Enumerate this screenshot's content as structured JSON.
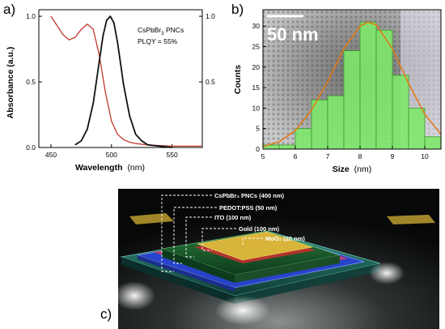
{
  "figure": {
    "panel_labels": [
      "a)",
      "b)",
      "c)"
    ]
  },
  "panel_a": {
    "ylabel_left": "Absorbance (a.u.)",
    "xlabel_bold": "Wavelength",
    "xlabel_unit": "(nm)",
    "legend_line1": "CsPbBr",
    "legend_line1_sub": "3",
    "legend_line1_tail": " PNCs",
    "legend_line2": "PLQY = 55%",
    "x_ticks": [
      "450",
      "500",
      "550"
    ],
    "y_ticks_left": [
      "0.0",
      "0.5",
      "1.0"
    ],
    "y_ticks_right": [
      "0.5",
      "1.0"
    ]
  },
  "panel_b": {
    "scalebar_label": "50 nm",
    "ylabel": "Counts",
    "xlabel_bold": "Size",
    "xlabel_unit": "(nm)",
    "x_ticks": [
      "5",
      "6",
      "7",
      "8",
      "9",
      "10"
    ],
    "y_ticks": [
      "0",
      "5",
      "10",
      "15",
      "20",
      "25",
      "30"
    ]
  },
  "panel_c": {
    "labels": {
      "pnc": "CsPbBr₃ PNCs (400 nm)",
      "pedot": "PEDOT:PSS (50 nm)",
      "ito": "ITO (100 nm)",
      "gold": "Gold (100 nm)",
      "moo3": "MoO₃ (20 nm)"
    }
  },
  "colors": {
    "absorbance": "#c0392b",
    "pl": "#111111",
    "hist_fill": "#7ee86a",
    "hist_edge": "#3a9a2a",
    "fit": "#e07b1a"
  },
  "chart_data": [
    {
      "type": "line",
      "panel": "a",
      "xlabel": "Wavelength (nm)",
      "ylabel": "Absorbance (a.u.)",
      "xlim": [
        440,
        575
      ],
      "ylim": [
        0,
        1.05
      ],
      "legend": "CsPbBr3 PNCs PLQY = 55%",
      "series": [
        {
          "name": "",
          "role": "absorbance",
          "x": [
            450,
            455,
            460,
            465,
            470,
            475,
            480,
            485,
            490,
            495,
            500,
            505,
            510,
            515,
            520,
            530,
            540,
            550,
            560,
            575
          ],
          "y": [
            1.0,
            0.93,
            0.86,
            0.82,
            0.84,
            0.9,
            0.94,
            0.9,
            0.7,
            0.42,
            0.2,
            0.1,
            0.06,
            0.04,
            0.03,
            0.02,
            0.015,
            0.01,
            0.01,
            0.01
          ]
        },
        {
          "name": "",
          "role": "photoluminescence",
          "x": [
            470,
            475,
            480,
            485,
            490,
            493,
            496,
            499,
            502,
            505,
            510,
            515,
            520,
            525,
            530,
            540,
            550
          ],
          "y": [
            0.02,
            0.05,
            0.14,
            0.34,
            0.66,
            0.85,
            0.97,
            1.0,
            0.95,
            0.8,
            0.48,
            0.24,
            0.1,
            0.05,
            0.02,
            0.01,
            0.0
          ]
        }
      ]
    },
    {
      "type": "bar",
      "panel": "b",
      "xlabel": "Size (nm)",
      "ylabel": "Counts",
      "xlim": [
        5,
        10.5
      ],
      "ylim": [
        0,
        34
      ],
      "bins": [
        [
          5.0,
          5.5
        ],
        [
          5.5,
          6.0
        ],
        [
          6.0,
          6.5
        ],
        [
          6.5,
          7.0
        ],
        [
          7.0,
          7.5
        ],
        [
          7.5,
          8.0
        ],
        [
          8.0,
          8.5
        ],
        [
          8.5,
          9.0
        ],
        [
          9.0,
          9.5
        ],
        [
          9.5,
          10.0
        ],
        [
          10.0,
          10.5
        ]
      ],
      "values": [
        1,
        1,
        5,
        12,
        13,
        24,
        31,
        29,
        18,
        10,
        3
      ],
      "fit": {
        "x": [
          5.0,
          5.5,
          6.0,
          6.5,
          7.0,
          7.5,
          8.0,
          8.25,
          8.5,
          9.0,
          9.5,
          10.0,
          10.5
        ],
        "y": [
          0.6,
          1.8,
          4.5,
          9.5,
          16.5,
          24.5,
          30.0,
          31.0,
          30.3,
          24.5,
          16.0,
          8.5,
          3.6
        ]
      }
    }
  ]
}
